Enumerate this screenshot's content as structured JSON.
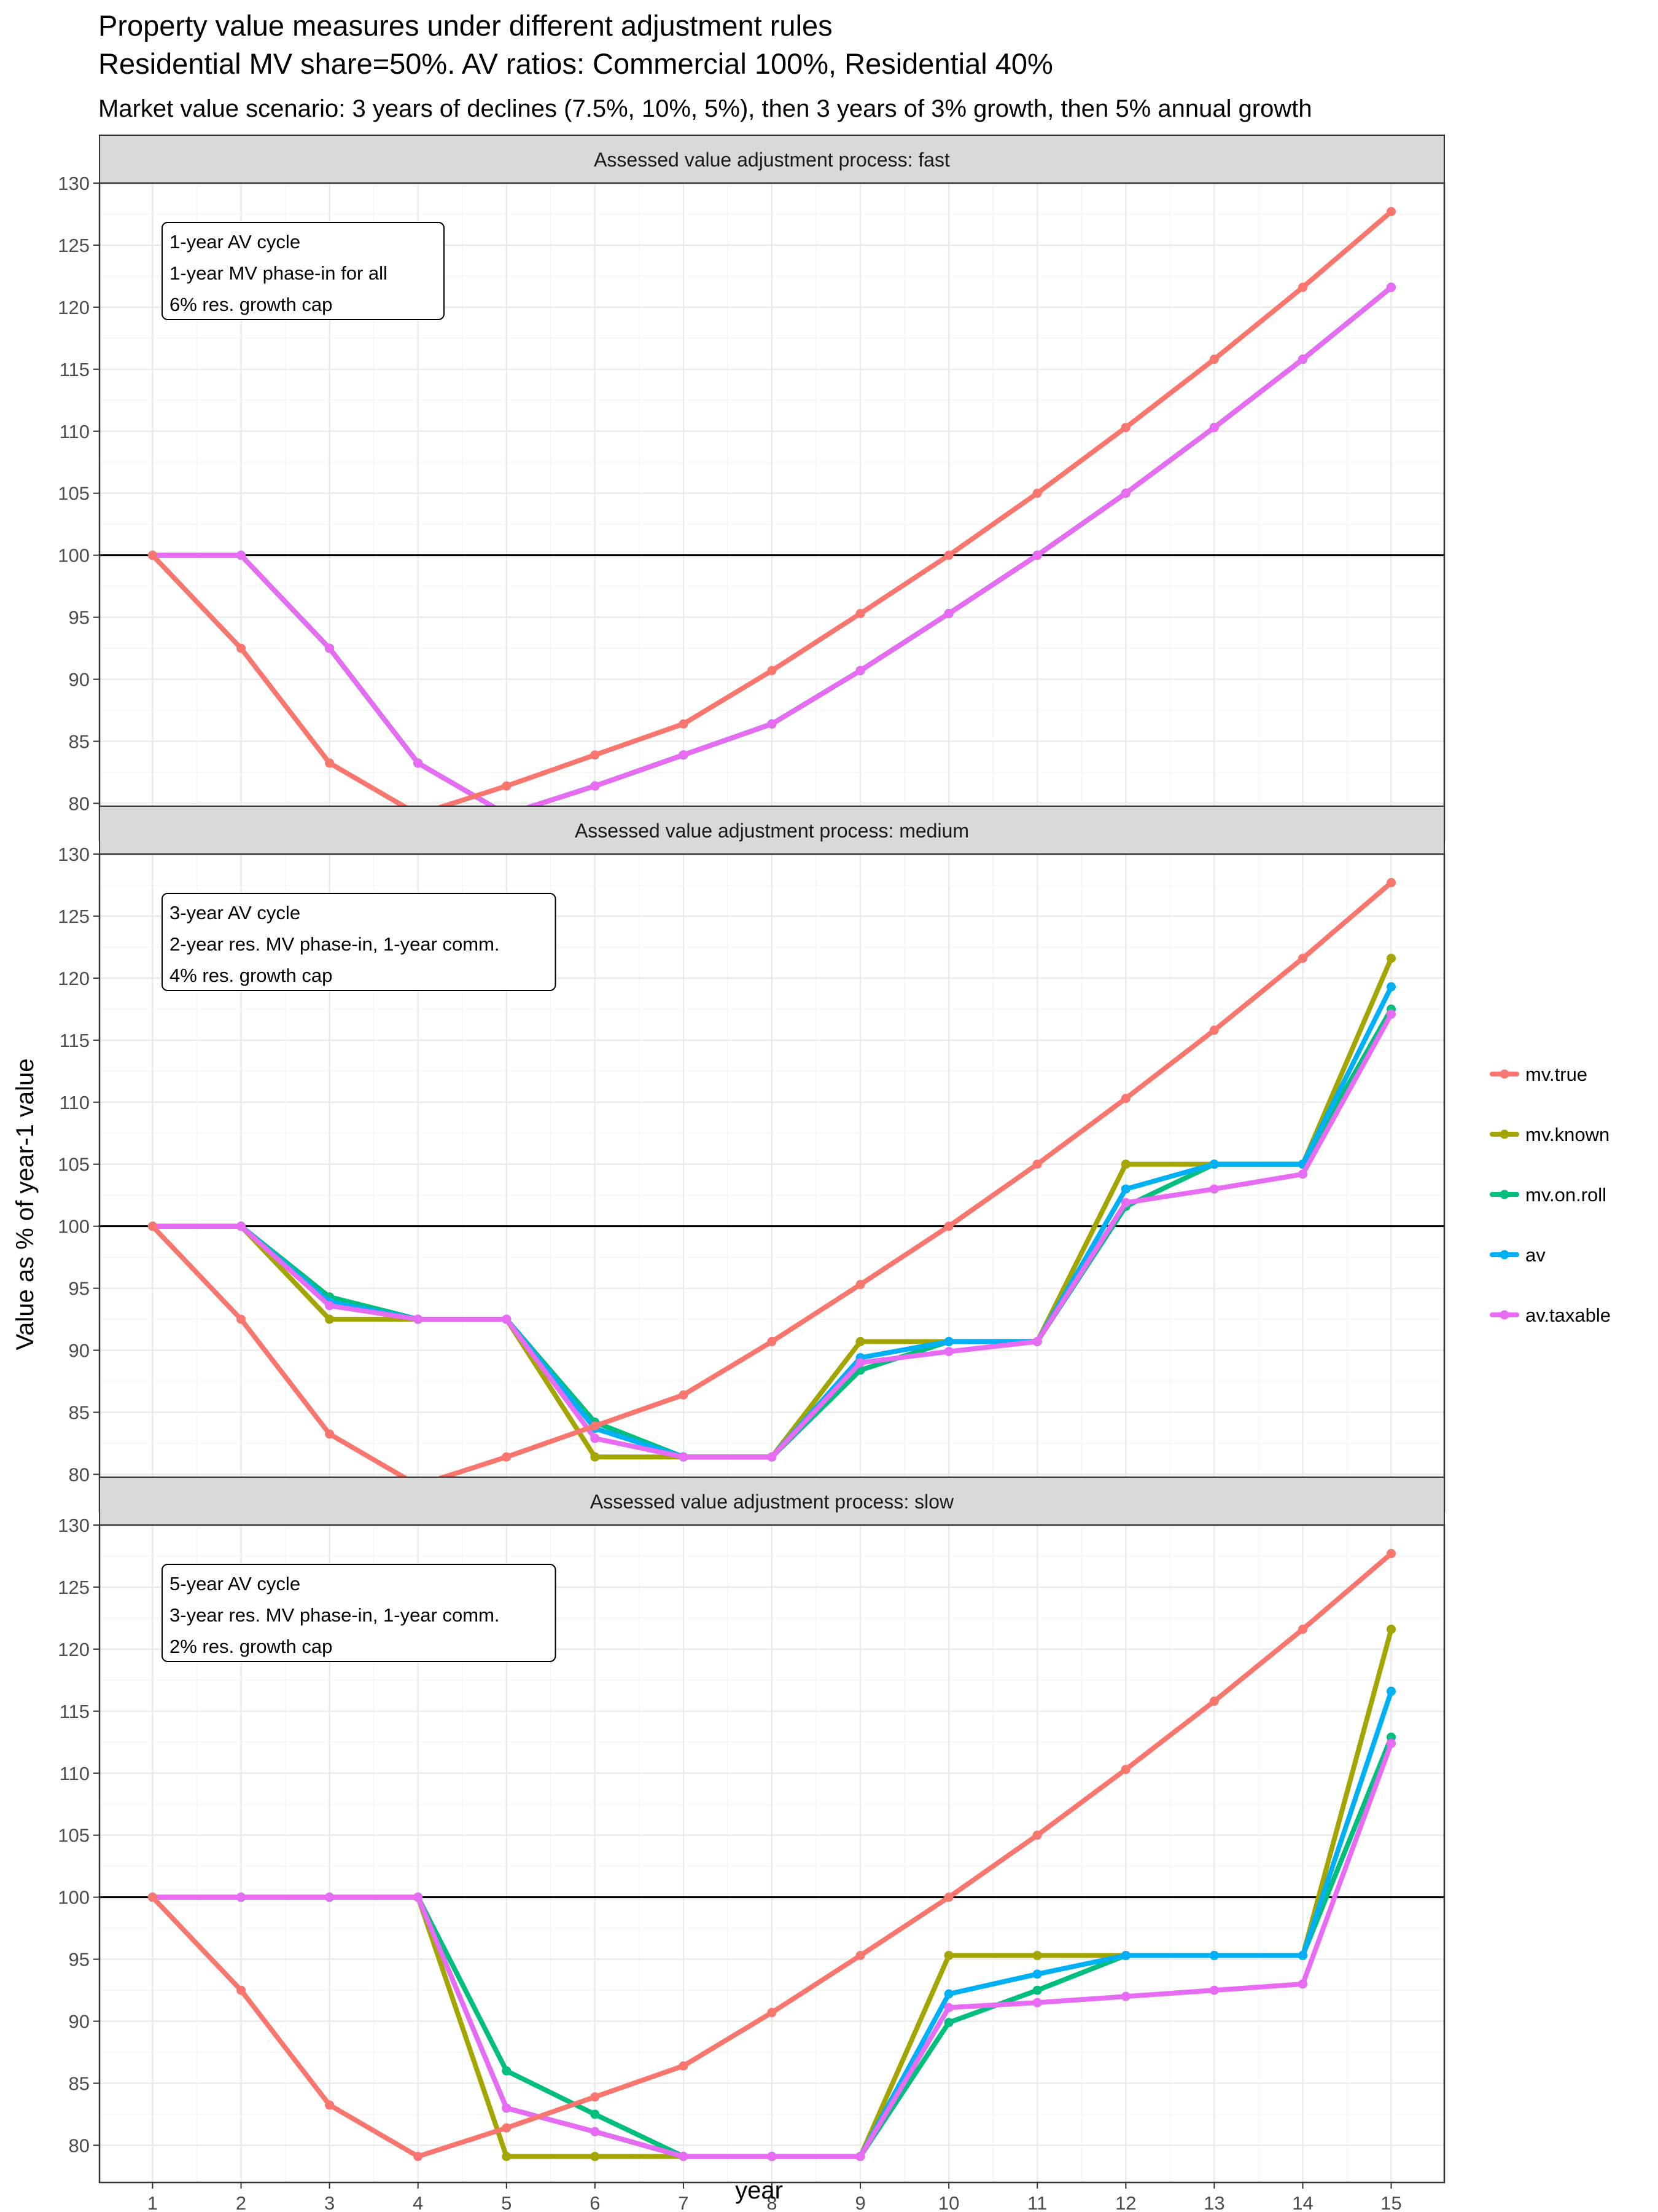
{
  "title_lines": [
    "Property value measures under different adjustment rules",
    "Residential MV share=50%. AV ratios: Commercial 100%, Residential 40%"
  ],
  "subtitle": "Market value scenario: 3 years of declines (7.5%, 10%, 5%), then 3 years of 3% growth, then 5% annual growth",
  "colors": {
    "mv.true": "#F8766D",
    "mv.known": "#A3A500",
    "mv.on.roll": "#00BF7D",
    "av": "#00B0F6",
    "av.taxable": "#E76BF3",
    "reference_line": "#000000",
    "strip_fill": "#D9D9D9",
    "grid": "#EBEBEB"
  },
  "chart_data": {
    "type": "line",
    "xlabel": "year",
    "ylabel": "Value as % of year-1 value",
    "x": [
      1,
      2,
      3,
      4,
      5,
      6,
      7,
      8,
      9,
      10,
      11,
      12,
      13,
      14,
      15
    ],
    "x_ticks": [
      "1",
      "2",
      "3",
      "4",
      "5",
      "6",
      "7",
      "8",
      "9",
      "10",
      "11",
      "12",
      "13",
      "14",
      "15"
    ],
    "ylim": [
      77,
      130
    ],
    "y_ticks": [
      80,
      85,
      90,
      95,
      100,
      105,
      110,
      115,
      120,
      125,
      130
    ],
    "reference_y": 100,
    "grid": true,
    "legend_position": "right",
    "legend": [
      "mv.true",
      "mv.known",
      "mv.on.roll",
      "av",
      "av.taxable"
    ],
    "panels": [
      {
        "strip": "Assessed value adjustment process: fast",
        "note": [
          "1-year AV cycle",
          "1-year MV phase-in for all",
          "6% res. growth cap"
        ],
        "series": [
          {
            "name": "mv.known",
            "values": [
              100,
              100,
              92.5,
              83.25,
              79.1,
              81.4,
              83.9,
              86.4,
              90.7,
              95.3,
              100.0,
              105.0,
              110.3,
              115.8,
              121.6
            ]
          },
          {
            "name": "mv.on.roll",
            "values": [
              100,
              100,
              92.5,
              83.25,
              79.1,
              81.4,
              83.9,
              86.4,
              90.7,
              95.3,
              100.0,
              105.0,
              110.3,
              115.8,
              121.6
            ]
          },
          {
            "name": "av",
            "values": [
              100,
              100,
              92.5,
              83.25,
              79.1,
              81.4,
              83.9,
              86.4,
              90.7,
              95.3,
              100.0,
              105.0,
              110.3,
              115.8,
              121.6
            ]
          },
          {
            "name": "av.taxable",
            "values": [
              100,
              100,
              92.5,
              83.25,
              79.1,
              81.4,
              83.9,
              86.4,
              90.7,
              95.3,
              100.0,
              105.0,
              110.3,
              115.8,
              121.6
            ]
          },
          {
            "name": "mv.true",
            "values": [
              100,
              92.5,
              83.25,
              79.1,
              81.4,
              83.9,
              86.4,
              90.7,
              95.3,
              100.0,
              105.0,
              110.3,
              115.8,
              121.6,
              127.7
            ]
          }
        ]
      },
      {
        "strip": "Assessed value adjustment process: medium",
        "note": [
          "3-year AV cycle",
          "2-year res. MV phase-in, 1-year comm.",
          "4% res. growth cap"
        ],
        "series": [
          {
            "name": "mv.known",
            "values": [
              100,
              100,
              92.5,
              92.5,
              92.5,
              81.4,
              81.4,
              81.4,
              90.7,
              90.7,
              90.7,
              105.0,
              105.0,
              105.0,
              121.6
            ]
          },
          {
            "name": "mv.on.roll",
            "values": [
              100,
              100,
              94.3,
              92.5,
              92.5,
              84.2,
              81.4,
              81.4,
              88.4,
              90.7,
              90.7,
              101.6,
              105.0,
              105.0,
              117.5
            ]
          },
          {
            "name": "av",
            "values": [
              100,
              100,
              93.9,
              92.5,
              92.5,
              83.7,
              81.4,
              81.4,
              89.4,
              90.7,
              90.7,
              103.0,
              105.0,
              105.0,
              119.3
            ]
          },
          {
            "name": "av.taxable",
            "values": [
              100,
              100,
              93.6,
              92.5,
              92.5,
              82.9,
              81.4,
              81.4,
              89.0,
              89.9,
              90.7,
              101.9,
              103.0,
              104.2,
              117.1
            ]
          },
          {
            "name": "mv.true",
            "values": [
              100,
              92.5,
              83.25,
              79.1,
              81.4,
              83.9,
              86.4,
              90.7,
              95.3,
              100.0,
              105.0,
              110.3,
              115.8,
              121.6,
              127.7
            ]
          }
        ]
      },
      {
        "strip": "Assessed value adjustment process: slow",
        "note": [
          "5-year AV cycle",
          "3-year res. MV phase-in, 1-year comm.",
          "2% res. growth cap"
        ],
        "series": [
          {
            "name": "mv.known",
            "values": [
              100,
              100,
              100,
              100,
              79.1,
              79.1,
              79.1,
              79.1,
              79.1,
              95.3,
              95.3,
              95.3,
              95.3,
              95.3,
              121.6
            ]
          },
          {
            "name": "mv.on.roll",
            "values": [
              100,
              100,
              100,
              100,
              86.0,
              82.5,
              79.1,
              79.1,
              79.1,
              89.9,
              92.5,
              95.3,
              95.3,
              95.3,
              112.9
            ]
          },
          {
            "name": "av",
            "values": [
              100,
              100,
              100,
              100,
              83.0,
              81.1,
              79.1,
              79.1,
              79.1,
              92.2,
              93.8,
              95.3,
              95.3,
              95.3,
              116.6
            ]
          },
          {
            "name": "av.taxable",
            "values": [
              100,
              100,
              100,
              100,
              83.0,
              81.1,
              79.1,
              79.1,
              79.1,
              91.1,
              91.5,
              92.0,
              92.5,
              93.0,
              112.4
            ]
          },
          {
            "name": "mv.true",
            "values": [
              100,
              92.5,
              83.25,
              79.1,
              81.4,
              83.9,
              86.4,
              90.7,
              95.3,
              100.0,
              105.0,
              110.3,
              115.8,
              121.6,
              127.7
            ]
          }
        ]
      }
    ]
  }
}
